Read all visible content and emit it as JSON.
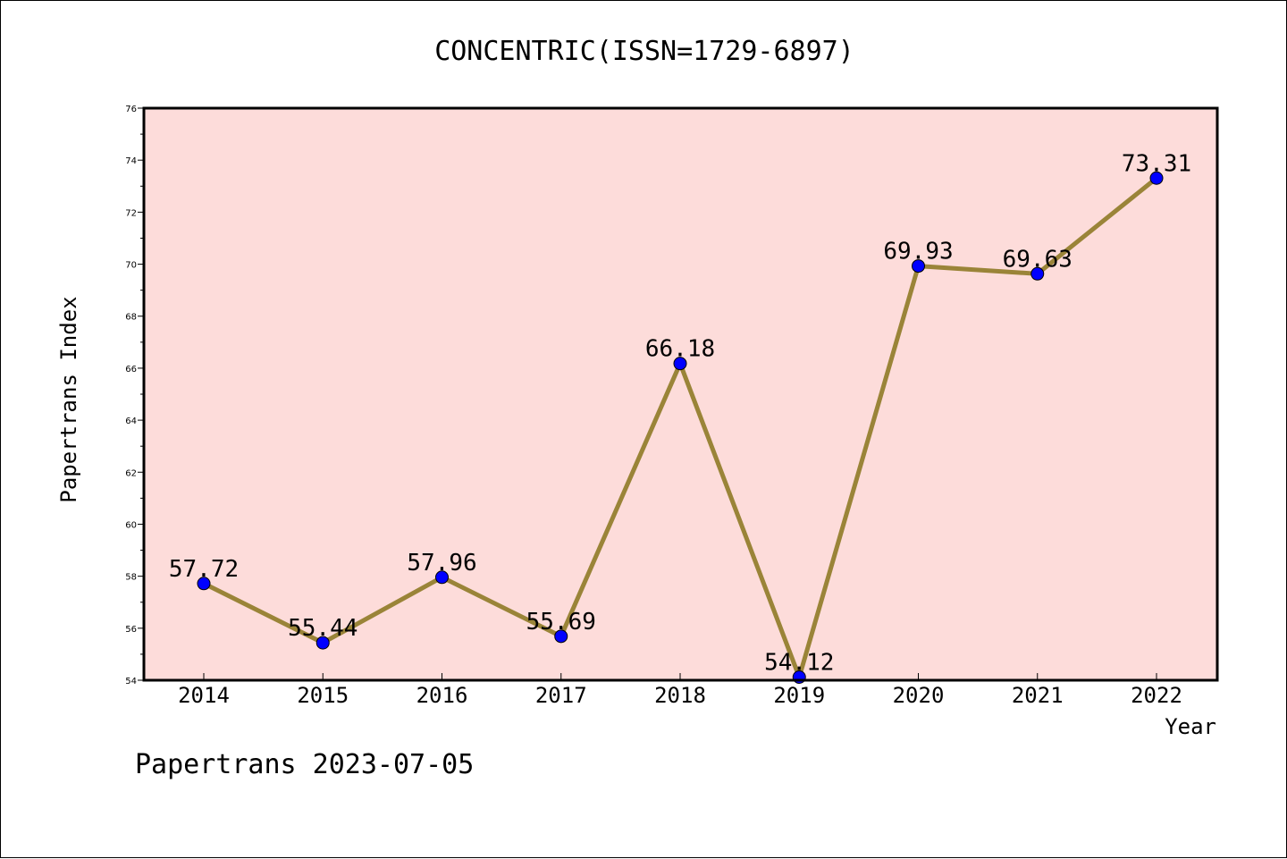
{
  "chart_data": {
    "type": "line",
    "title": "CONCENTRIC(ISSN=1729-6897)",
    "xlabel": "Year",
    "ylabel": "Papertrans Index",
    "categories": [
      "2014",
      "2015",
      "2016",
      "2017",
      "2018",
      "2019",
      "2020",
      "2021",
      "2022"
    ],
    "values": [
      57.72,
      55.44,
      57.96,
      55.69,
      66.18,
      54.12,
      69.93,
      69.63,
      73.31
    ],
    "data_labels": [
      "57.72",
      "55.44",
      "57.96",
      "55.69",
      "66.18",
      "54.12",
      "69.93",
      "69.63",
      "73.31"
    ],
    "ylim": [
      54,
      76
    ],
    "yticks": [
      54,
      56,
      58,
      60,
      62,
      64,
      66,
      68,
      70,
      72,
      74,
      76
    ],
    "grid": false,
    "colors": {
      "plot_background": "#fddcda",
      "line": "#9a8438",
      "marker": "#0000ff"
    }
  },
  "footer": {
    "text": "Papertrans 2023-07-05"
  }
}
